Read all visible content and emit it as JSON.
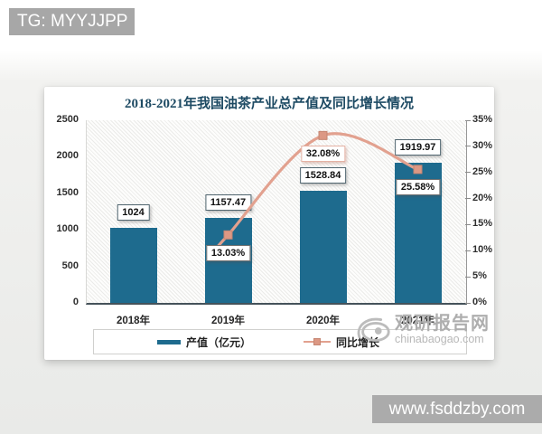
{
  "overlay": {
    "tg_badge": "TG: MYYJJPP",
    "url_badge": "www.fsddzby.com"
  },
  "watermark": {
    "site_name": "观研报告网",
    "site_domain": "chinabaogao.com"
  },
  "chart_data": {
    "type": "bar",
    "title": "2018-2021年我国油茶产业总产值及同比增长情况",
    "categories": [
      "2018年",
      "2019年",
      "2020年",
      "2021年"
    ],
    "series": [
      {
        "name": "产值（亿元）",
        "chart_type": "bar",
        "axis": "left",
        "values": [
          1024,
          1157.47,
          1528.84,
          1919.97
        ],
        "labels": [
          "1024",
          "1157.47",
          "1528.84",
          "1919.97"
        ]
      },
      {
        "name": "同比增长",
        "chart_type": "line",
        "axis": "right",
        "values": [
          null,
          13.03,
          32.08,
          25.58
        ],
        "labels": [
          null,
          "13.03%",
          "32.08%",
          "25.58%"
        ]
      }
    ],
    "left_axis": {
      "ticks": [
        "0",
        "500",
        "1000",
        "1500",
        "2000",
        "2500"
      ],
      "min": 0,
      "max": 2500
    },
    "right_axis": {
      "ticks": [
        "0%",
        "5%",
        "10%",
        "15%",
        "20%",
        "25%",
        "30%",
        "35%"
      ],
      "min": 0,
      "max": 35
    },
    "legend_position": "bottom",
    "grid": false,
    "colors": {
      "bar": "#1e6b8e",
      "line": "#e2a18f",
      "marker": "#dc9884",
      "title": "#1d4a63"
    }
  }
}
